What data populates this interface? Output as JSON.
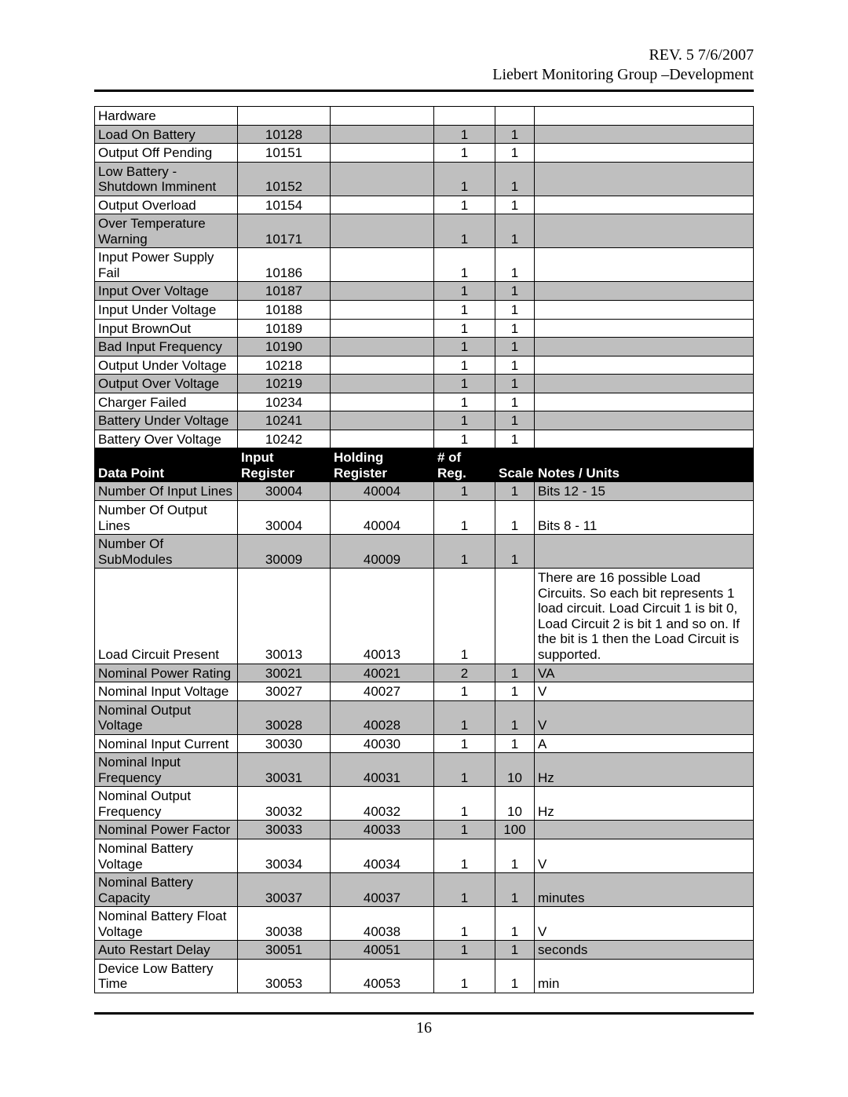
{
  "header": {
    "rev_line": "REV. 5  7/6/2007",
    "title_line": "Liebert Monitoring Group –Development"
  },
  "page_number": "16",
  "table": {
    "header_labels": {
      "data_point": "Data Point",
      "input_register": "Input Register",
      "holding_register": "Holding Register",
      "num_reg": "# of Reg.",
      "scale": "Scale",
      "notes_units": "Notes / Units"
    },
    "columns": [
      "Data Point",
      "Input Register",
      "Holding Register",
      "# of Reg.",
      "Scale",
      "Notes / Units"
    ],
    "row_background_shade": "#bfbfbf",
    "header_row_bg": "#000000",
    "header_row_fg": "#ffffff",
    "rows": [
      {
        "shade": false,
        "cells": [
          "Hardware",
          "",
          "",
          "",
          "",
          ""
        ]
      },
      {
        "shade": true,
        "cells": [
          "Load On Battery",
          "10128",
          "",
          "1",
          "1",
          ""
        ]
      },
      {
        "shade": false,
        "cells": [
          "Output Off Pending",
          "10151",
          "",
          "1",
          "1",
          ""
        ]
      },
      {
        "shade": true,
        "cells": [
          "Low Battery - Shutdown Imminent",
          "10152",
          "",
          "1",
          "1",
          ""
        ]
      },
      {
        "shade": false,
        "cells": [
          "Output Overload",
          "10154",
          "",
          "1",
          "1",
          ""
        ]
      },
      {
        "shade": true,
        "cells": [
          "Over Temperature Warning",
          "10171",
          "",
          "1",
          "1",
          ""
        ]
      },
      {
        "shade": false,
        "cells": [
          "Input Power Supply Fail",
          "10186",
          "",
          "1",
          "1",
          ""
        ]
      },
      {
        "shade": true,
        "cells": [
          "Input Over Voltage",
          "10187",
          "",
          "1",
          "1",
          ""
        ]
      },
      {
        "shade": false,
        "cells": [
          "Input Under Voltage",
          "10188",
          "",
          "1",
          "1",
          ""
        ]
      },
      {
        "shade": false,
        "cells": [
          "Input BrownOut",
          "10189",
          "",
          "1",
          "1",
          ""
        ]
      },
      {
        "shade": true,
        "cells": [
          "Bad Input Frequency",
          "10190",
          "",
          "1",
          "1",
          ""
        ]
      },
      {
        "shade": false,
        "cells": [
          "Output Under Voltage",
          "10218",
          "",
          "1",
          "1",
          ""
        ]
      },
      {
        "shade": true,
        "cells": [
          "Output Over Voltage",
          "10219",
          "",
          "1",
          "1",
          ""
        ]
      },
      {
        "shade": false,
        "cells": [
          "Charger Failed",
          "10234",
          "",
          "1",
          "1",
          ""
        ]
      },
      {
        "shade": true,
        "cells": [
          "Battery Under Voltage",
          "10241",
          "",
          "1",
          "1",
          ""
        ]
      },
      {
        "shade": false,
        "cells": [
          "Battery Over Voltage",
          "10242",
          "",
          "1",
          "1",
          ""
        ]
      },
      {
        "header": true
      },
      {
        "shade": true,
        "cells": [
          "Number Of Input Lines",
          "30004",
          "40004",
          "1",
          "1",
          "Bits 12 - 15"
        ]
      },
      {
        "shade": false,
        "cells": [
          "Number Of Output Lines",
          "30004",
          "40004",
          "1",
          "1",
          "Bits 8 - 11"
        ]
      },
      {
        "shade": true,
        "cells": [
          "Number Of SubModules",
          "30009",
          "40009",
          "1",
          "1",
          ""
        ]
      },
      {
        "shade": false,
        "cells": [
          "Load Circuit Present",
          "30013",
          "40013",
          "1",
          "",
          "There are 16 possible Load Circuits.  So each bit represents 1 load circuit.  Load Circuit 1 is bit 0, Load Circuit 2 is bit 1 and so on.  If the bit is 1 then the Load Circuit is supported."
        ]
      },
      {
        "shade": true,
        "cells": [
          "Nominal Power Rating",
          "30021",
          "40021",
          "2",
          "1",
          "VA"
        ]
      },
      {
        "shade": false,
        "cells": [
          "Nominal Input Voltage",
          "30027",
          "40027",
          "1",
          "1",
          "V"
        ]
      },
      {
        "shade": true,
        "cells": [
          "Nominal Output Voltage",
          "30028",
          "40028",
          "1",
          "1",
          "V"
        ]
      },
      {
        "shade": false,
        "cells": [
          "Nominal Input Current",
          "30030",
          "40030",
          "1",
          "1",
          "A"
        ]
      },
      {
        "shade": true,
        "cells": [
          "Nominal Input Frequency",
          "30031",
          "40031",
          "1",
          "10",
          "Hz"
        ]
      },
      {
        "shade": false,
        "cells": [
          "Nominal Output Frequency",
          "30032",
          "40032",
          "1",
          "10",
          "Hz"
        ]
      },
      {
        "shade": true,
        "cells": [
          "Nominal Power Factor",
          "30033",
          "40033",
          "1",
          "100",
          ""
        ]
      },
      {
        "shade": false,
        "cells": [
          "Nominal Battery Voltage",
          "30034",
          "40034",
          "1",
          "1",
          "V"
        ]
      },
      {
        "shade": true,
        "cells": [
          "Nominal Battery Capacity",
          "30037",
          "40037",
          "1",
          "1",
          "minutes"
        ]
      },
      {
        "shade": false,
        "cells": [
          "Nominal Battery Float Voltage",
          "30038",
          "40038",
          "1",
          "1",
          "V"
        ]
      },
      {
        "shade": true,
        "cells": [
          "Auto Restart Delay",
          "30051",
          "40051",
          "1",
          "1",
          "seconds"
        ]
      },
      {
        "shade": false,
        "cells": [
          "Device Low Battery Time",
          "30053",
          "40053",
          "1",
          "1",
          "min"
        ]
      }
    ]
  }
}
